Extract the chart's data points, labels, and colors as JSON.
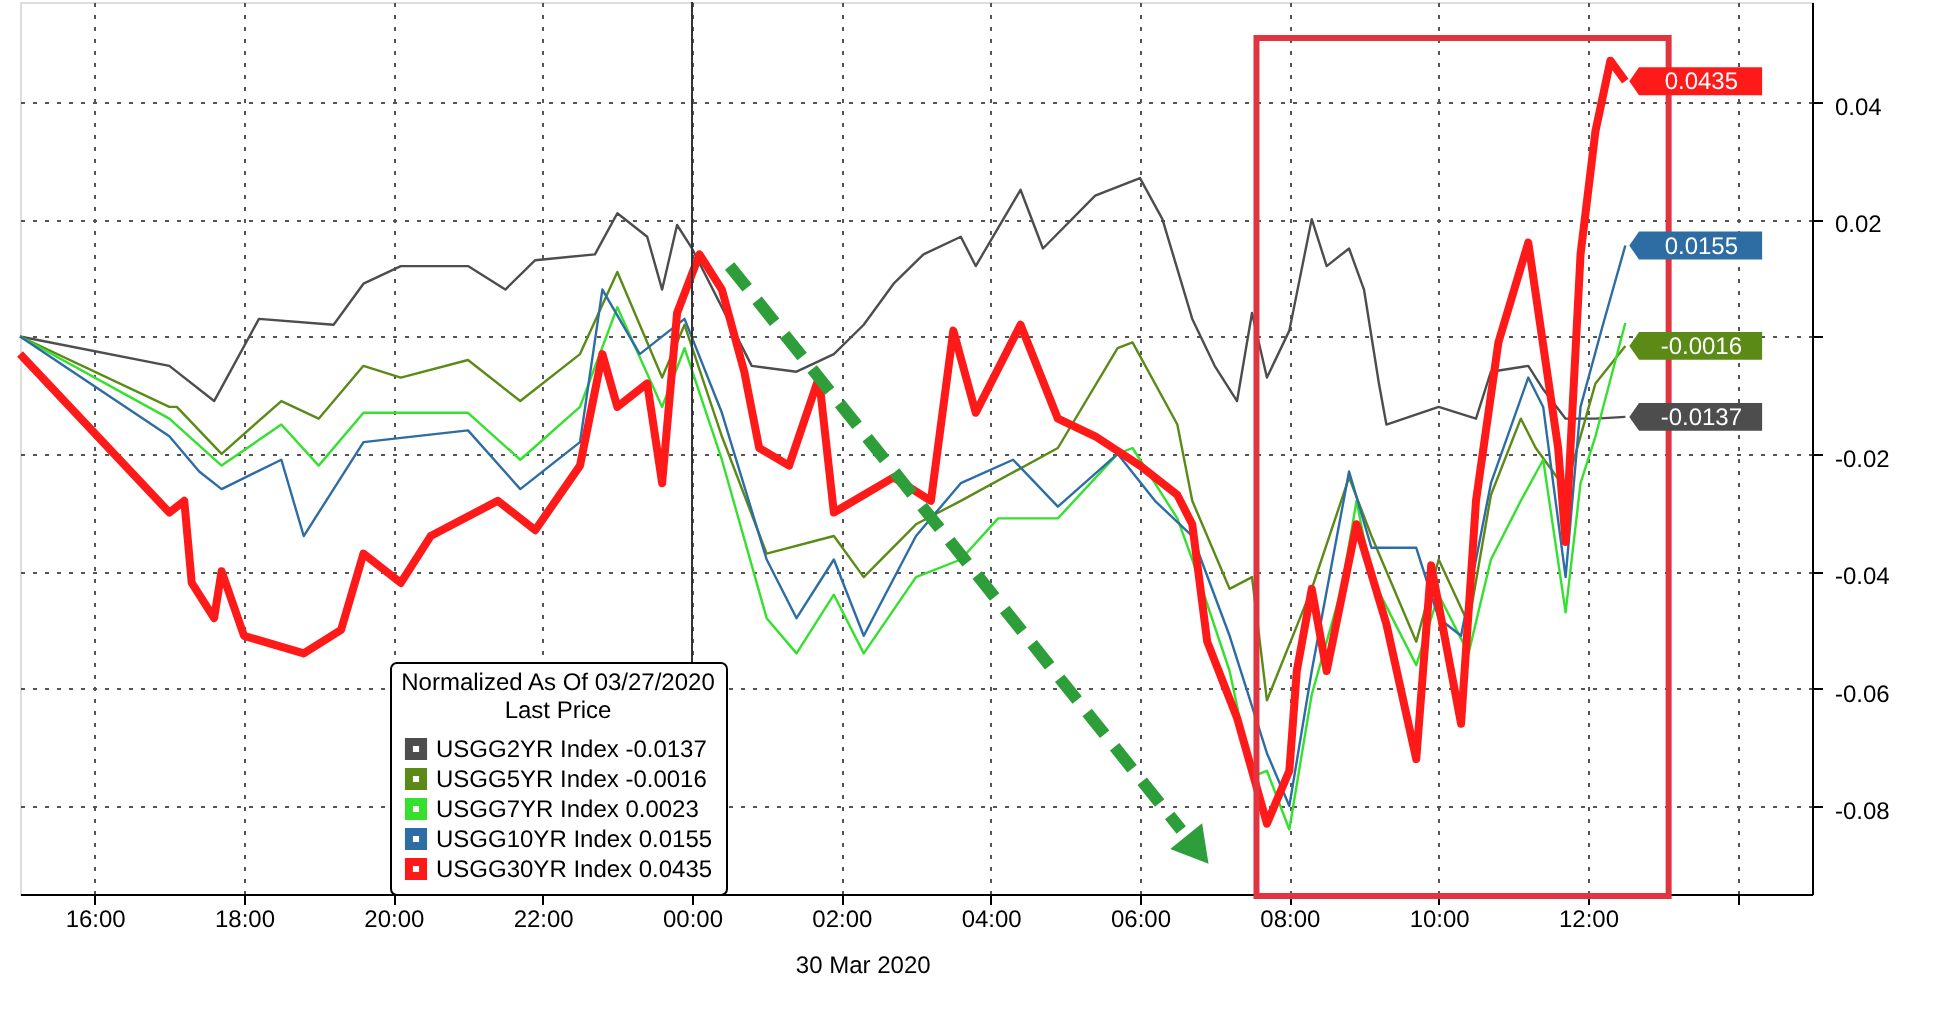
{
  "chart_data": {
    "type": "line",
    "legend_title": "Normalized As Of 03/27/2020\nLast Price",
    "xlabel": "30 Mar 2020",
    "xlim": [
      "2020-03-29T15:00",
      "2020-03-30T15:00"
    ],
    "ylim": [
      -0.095,
      0.057
    ],
    "xticks": [
      {
        "value": "2020-03-29T16:00",
        "label": "16:00"
      },
      {
        "value": "2020-03-29T18:00",
        "label": "18:00"
      },
      {
        "value": "2020-03-29T20:00",
        "label": "20:00"
      },
      {
        "value": "2020-03-29T22:00",
        "label": "22:00"
      },
      {
        "value": "2020-03-30T00:00",
        "label": "00:00"
      },
      {
        "value": "2020-03-30T02:00",
        "label": "02:00"
      },
      {
        "value": "2020-03-30T04:00",
        "label": "04:00"
      },
      {
        "value": "2020-03-30T06:00",
        "label": "06:00"
      },
      {
        "value": "2020-03-30T08:00",
        "label": "08:00"
      },
      {
        "value": "2020-03-30T10:00",
        "label": "10:00"
      },
      {
        "value": "2020-03-30T12:00",
        "label": "12:00"
      },
      {
        "value": "2020-03-30T14:00",
        "label": null
      }
    ],
    "yticks": [
      -0.08,
      -0.06,
      -0.04,
      -0.02,
      {
        "value": 0,
        "label": null
      },
      0.02,
      0.04
    ],
    "grid": true,
    "legend": "bottom left",
    "ref_lines": [
      {
        "axis": "x",
        "value": "2020-03-30T00:00",
        "color": "#333333"
      }
    ],
    "annotations": [
      {
        "text": "0.0435",
        "x": "2020-03-30T12:30",
        "y": 0.0435
      },
      {
        "text": "0.0155",
        "x": "2020-03-30T12:30",
        "y": 0.0155
      },
      {
        "text": "-0.0016",
        "x": "2020-03-30T12:30",
        "y": -0.0016
      },
      {
        "text": "-0.0137",
        "x": "2020-03-30T12:30",
        "y": -0.0137
      }
    ],
    "series": [
      {
        "name": "USGG2YR Index -0.0137",
        "color": "#4d4d4d",
        "x": [
          "2020-03-29T15:00",
          "2020-03-29T17:00",
          "2020-03-29T17:36",
          "2020-03-29T18:12",
          "2020-03-29T19:12",
          "2020-03-29T19:36",
          "2020-03-29T20:06",
          "2020-03-29T21:00",
          "2020-03-29T21:30",
          "2020-03-29T21:54",
          "2020-03-29T22:42",
          "2020-03-29T23:00",
          "2020-03-29T23:24",
          "2020-03-29T23:36",
          "2020-03-29T23:48",
          "2020-03-30T00:00",
          "2020-03-30T00:48",
          "2020-03-30T01:24",
          "2020-03-30T01:54",
          "2020-03-30T02:18",
          "2020-03-30T02:42",
          "2020-03-30T03:06",
          "2020-03-30T03:36",
          "2020-03-30T03:48",
          "2020-03-30T04:24",
          "2020-03-30T04:42",
          "2020-03-30T05:24",
          "2020-03-30T06:00",
          "2020-03-30T06:18",
          "2020-03-30T06:42",
          "2020-03-30T07:00",
          "2020-03-30T07:18",
          "2020-03-30T07:30",
          "2020-03-30T07:42",
          "2020-03-30T08:00",
          "2020-03-30T08:18",
          "2020-03-30T08:30",
          "2020-03-30T08:48",
          "2020-03-30T09:00",
          "2020-03-30T09:12",
          "2020-03-30T09:18",
          "2020-03-30T10:00",
          "2020-03-30T10:30",
          "2020-03-30T10:42",
          "2020-03-30T11:12",
          "2020-03-30T11:24",
          "2020-03-30T11:42",
          "2020-03-30T12:06",
          "2020-03-30T12:30"
        ],
        "values": [
          0,
          -0.005,
          -0.011,
          0.003,
          0.002,
          0.009,
          0.012,
          0.012,
          0.008,
          0.013,
          0.014,
          0.021,
          0.017,
          0.008,
          0.019,
          0.015,
          -0.005,
          -0.006,
          -0.003,
          0.002,
          0.009,
          0.014,
          0.017,
          0.012,
          0.025,
          0.015,
          0.024,
          0.027,
          0.02,
          0.003,
          -0.005,
          -0.011,
          0.004,
          -0.007,
          0.001,
          0.02,
          0.012,
          0.015,
          0.008,
          -0.008,
          -0.015,
          -0.012,
          -0.014,
          -0.006,
          -0.005,
          -0.009,
          -0.014,
          -0.014,
          -0.0137
        ],
        "value_labels": [
          null,
          null,
          null,
          null,
          null,
          null,
          null,
          null,
          null,
          null,
          null,
          null,
          null,
          null,
          null,
          null,
          null,
          null,
          null,
          null,
          null,
          null,
          null,
          null,
          null,
          null,
          null,
          null,
          null,
          null,
          null,
          null,
          null,
          null,
          null,
          null,
          null,
          null,
          null,
          null,
          null,
          null,
          null,
          null,
          null,
          null,
          null,
          null,
          null
        ]
      },
      {
        "name": "USGG5YR Index -0.0016",
        "color": "#5b8a16",
        "x": [
          "2020-03-29T15:00",
          "2020-03-29T17:00",
          "2020-03-29T17:06",
          "2020-03-29T17:42",
          "2020-03-29T18:30",
          "2020-03-29T19:00",
          "2020-03-29T19:36",
          "2020-03-29T20:06",
          "2020-03-29T21:00",
          "2020-03-29T21:42",
          "2020-03-29T22:30",
          "2020-03-29T23:00",
          "2020-03-29T23:36",
          "2020-03-29T23:54",
          "2020-03-30T00:24",
          "2020-03-30T01:00",
          "2020-03-30T01:54",
          "2020-03-30T02:18",
          "2020-03-30T03:00",
          "2020-03-30T03:36",
          "2020-03-30T04:54",
          "2020-03-30T05:42",
          "2020-03-30T05:54",
          "2020-03-30T06:30",
          "2020-03-30T06:42",
          "2020-03-30T07:12",
          "2020-03-30T07:30",
          "2020-03-30T07:42",
          "2020-03-30T08:18",
          "2020-03-30T08:48",
          "2020-03-30T09:06",
          "2020-03-30T09:42",
          "2020-03-30T10:00",
          "2020-03-30T10:24",
          "2020-03-30T10:42",
          "2020-03-30T11:06",
          "2020-03-30T11:18",
          "2020-03-30T11:42",
          "2020-03-30T12:06",
          "2020-03-30T12:30"
        ],
        "values": [
          0,
          -0.012,
          -0.012,
          -0.02,
          -0.011,
          -0.014,
          -0.005,
          -0.007,
          -0.004,
          -0.011,
          -0.003,
          0.011,
          -0.007,
          0.002,
          -0.017,
          -0.037,
          -0.034,
          -0.041,
          -0.032,
          -0.028,
          -0.019,
          -0.002,
          -0.001,
          -0.015,
          -0.028,
          -0.043,
          -0.041,
          -0.062,
          -0.043,
          -0.024,
          -0.034,
          -0.052,
          -0.038,
          -0.049,
          -0.027,
          -0.014,
          -0.019,
          -0.026,
          -0.008,
          -0.0016
        ],
        "value_labels": [
          null,
          null,
          null,
          null,
          null,
          null,
          null,
          null,
          null,
          null,
          null,
          null,
          null,
          null,
          null,
          null,
          null,
          null,
          null,
          null,
          null,
          null,
          null,
          null,
          null,
          null,
          null,
          null,
          null,
          null,
          null,
          null,
          null,
          null,
          null,
          null,
          null,
          null,
          null,
          null
        ]
      },
      {
        "name": "USGG7YR Index 0.0023",
        "color": "#35e02e",
        "x": [
          "2020-03-29T15:00",
          "2020-03-29T17:00",
          "2020-03-29T17:42",
          "2020-03-29T18:30",
          "2020-03-29T19:00",
          "2020-03-29T19:36",
          "2020-03-29T21:00",
          "2020-03-29T21:42",
          "2020-03-29T22:30",
          "2020-03-29T23:00",
          "2020-03-29T23:36",
          "2020-03-29T23:54",
          "2020-03-30T00:24",
          "2020-03-30T01:00",
          "2020-03-30T01:24",
          "2020-03-30T01:54",
          "2020-03-30T02:18",
          "2020-03-30T03:00",
          "2020-03-30T03:36",
          "2020-03-30T04:06",
          "2020-03-30T04:54",
          "2020-03-30T05:42",
          "2020-03-30T05:54",
          "2020-03-30T06:30",
          "2020-03-30T06:42",
          "2020-03-30T07:12",
          "2020-03-30T07:30",
          "2020-03-30T07:42",
          "2020-03-30T08:00",
          "2020-03-30T08:18",
          "2020-03-30T08:42",
          "2020-03-30T08:54",
          "2020-03-30T09:06",
          "2020-03-30T09:42",
          "2020-03-30T10:00",
          "2020-03-30T10:24",
          "2020-03-30T10:42",
          "2020-03-30T11:06",
          "2020-03-30T11:24",
          "2020-03-30T11:42",
          "2020-03-30T11:54",
          "2020-03-30T12:06",
          "2020-03-30T12:30"
        ],
        "values": [
          0,
          -0.014,
          -0.022,
          -0.015,
          -0.022,
          -0.013,
          -0.013,
          -0.021,
          -0.012,
          0.005,
          -0.012,
          -0.002,
          -0.021,
          -0.048,
          -0.054,
          -0.044,
          -0.054,
          -0.041,
          -0.038,
          -0.031,
          -0.031,
          -0.02,
          -0.019,
          -0.031,
          -0.038,
          -0.057,
          -0.075,
          -0.074,
          -0.084,
          -0.061,
          -0.043,
          -0.028,
          -0.041,
          -0.056,
          -0.044,
          -0.054,
          -0.038,
          -0.028,
          -0.021,
          -0.047,
          -0.025,
          -0.017,
          0.0023
        ]
      },
      {
        "name": "USGG10YR Index 0.0155",
        "color": "#2e6ca4",
        "x": [
          "2020-03-29T15:00",
          "2020-03-29T17:00",
          "2020-03-29T17:24",
          "2020-03-29T17:42",
          "2020-03-29T18:30",
          "2020-03-29T18:48",
          "2020-03-29T19:12",
          "2020-03-29T19:36",
          "2020-03-29T21:00",
          "2020-03-29T21:42",
          "2020-03-29T22:30",
          "2020-03-29T22:48",
          "2020-03-29T23:18",
          "2020-03-29T23:54",
          "2020-03-30T00:24",
          "2020-03-30T01:00",
          "2020-03-30T01:24",
          "2020-03-30T01:54",
          "2020-03-30T02:18",
          "2020-03-30T03:00",
          "2020-03-30T03:36",
          "2020-03-30T04:18",
          "2020-03-30T04:54",
          "2020-03-30T05:42",
          "2020-03-30T06:12",
          "2020-03-30T06:42",
          "2020-03-30T07:12",
          "2020-03-30T07:42",
          "2020-03-30T08:00",
          "2020-03-30T08:18",
          "2020-03-30T08:48",
          "2020-03-30T09:06",
          "2020-03-30T09:42",
          "2020-03-30T10:00",
          "2020-03-30T10:18",
          "2020-03-30T10:42",
          "2020-03-30T11:12",
          "2020-03-30T11:24",
          "2020-03-30T11:42",
          "2020-03-30T11:54",
          "2020-03-30T12:12",
          "2020-03-30T12:30"
        ],
        "values": [
          0,
          -0.017,
          -0.023,
          -0.026,
          -0.021,
          -0.034,
          -0.026,
          -0.018,
          -0.016,
          -0.026,
          -0.018,
          0.008,
          -0.003,
          0.003,
          -0.013,
          -0.038,
          -0.048,
          -0.038,
          -0.051,
          -0.034,
          -0.025,
          -0.021,
          -0.029,
          -0.02,
          -0.028,
          -0.034,
          -0.051,
          -0.071,
          -0.08,
          -0.057,
          -0.023,
          -0.036,
          -0.036,
          -0.048,
          -0.051,
          -0.025,
          -0.007,
          -0.012,
          -0.041,
          -0.012,
          0.002,
          0.0155
        ],
        "value_labels": [
          null,
          null,
          null,
          null,
          null,
          null,
          null,
          null,
          null,
          null,
          null,
          null,
          null,
          null,
          null,
          null,
          null,
          null,
          null,
          null,
          null,
          null,
          null,
          null,
          null,
          null,
          null,
          null,
          null,
          null,
          null,
          null,
          null,
          null,
          null,
          null,
          null,
          null,
          null,
          null,
          null,
          null
        ]
      },
      {
        "name": "USGG30YR Index 0.0435",
        "color": "#ff1a1a",
        "x": [
          "2020-03-29T15:00",
          "2020-03-29T17:00",
          "2020-03-29T17:12",
          "2020-03-29T17:18",
          "2020-03-29T17:36",
          "2020-03-29T17:42",
          "2020-03-29T18:00",
          "2020-03-29T18:48",
          "2020-03-29T19:18",
          "2020-03-29T19:36",
          "2020-03-29T20:06",
          "2020-03-29T20:30",
          "2020-03-29T21:24",
          "2020-03-29T21:54",
          "2020-03-29T22:30",
          "2020-03-29T22:48",
          "2020-03-29T23:00",
          "2020-03-29T23:24",
          "2020-03-29T23:36",
          "2020-03-29T23:48",
          "2020-03-30T00:06",
          "2020-03-30T00:24",
          "2020-03-30T00:42",
          "2020-03-30T00:54",
          "2020-03-30T01:18",
          "2020-03-30T01:42",
          "2020-03-30T01:54",
          "2020-03-30T02:42",
          "2020-03-30T03:12",
          "2020-03-30T03:30",
          "2020-03-30T03:48",
          "2020-03-30T04:24",
          "2020-03-30T04:54",
          "2020-03-30T05:24",
          "2020-03-30T06:00",
          "2020-03-30T06:30",
          "2020-03-30T06:42",
          "2020-03-30T06:54",
          "2020-03-30T07:18",
          "2020-03-30T07:42",
          "2020-03-30T08:00",
          "2020-03-30T08:06",
          "2020-03-30T08:18",
          "2020-03-30T08:30",
          "2020-03-30T08:54",
          "2020-03-30T09:18",
          "2020-03-30T09:42",
          "2020-03-30T09:54",
          "2020-03-30T10:18",
          "2020-03-30T10:30",
          "2020-03-30T10:48",
          "2020-03-30T11:12",
          "2020-03-30T11:36",
          "2020-03-30T11:42",
          "2020-03-30T11:54",
          "2020-03-30T12:06",
          "2020-03-30T12:18",
          "2020-03-30T12:30"
        ],
        "values": [
          -0.003,
          -0.03,
          -0.028,
          -0.042,
          -0.048,
          -0.04,
          -0.051,
          -0.054,
          -0.05,
          -0.037,
          -0.042,
          -0.034,
          -0.028,
          -0.033,
          -0.022,
          -0.003,
          -0.012,
          -0.008,
          -0.025,
          0.004,
          0.014,
          0.008,
          -0.006,
          -0.019,
          -0.022,
          -0.007,
          -0.03,
          -0.024,
          -0.028,
          0.001,
          -0.013,
          0.002,
          -0.014,
          -0.017,
          -0.022,
          -0.027,
          -0.032,
          -0.052,
          -0.065,
          -0.083,
          -0.074,
          -0.057,
          -0.043,
          -0.057,
          -0.032,
          -0.049,
          -0.072,
          -0.039,
          -0.066,
          -0.028,
          -0.001,
          0.016,
          -0.019,
          -0.035,
          0.014,
          0.035,
          0.047,
          0.0435
        ],
        "value_labels": [
          null,
          null,
          null,
          null,
          null,
          null,
          null,
          null,
          null,
          null,
          null,
          null,
          null,
          null,
          null,
          null,
          null,
          null,
          null,
          null,
          null,
          null,
          null,
          null,
          null,
          null,
          null,
          null,
          null,
          null,
          null,
          null,
          null,
          null,
          null,
          null,
          null,
          null,
          null,
          null,
          null,
          null,
          null,
          null,
          null,
          null,
          null,
          null,
          null,
          null,
          null,
          null,
          null,
          null,
          null,
          null,
          null,
          null
        ]
      }
    ]
  }
}
